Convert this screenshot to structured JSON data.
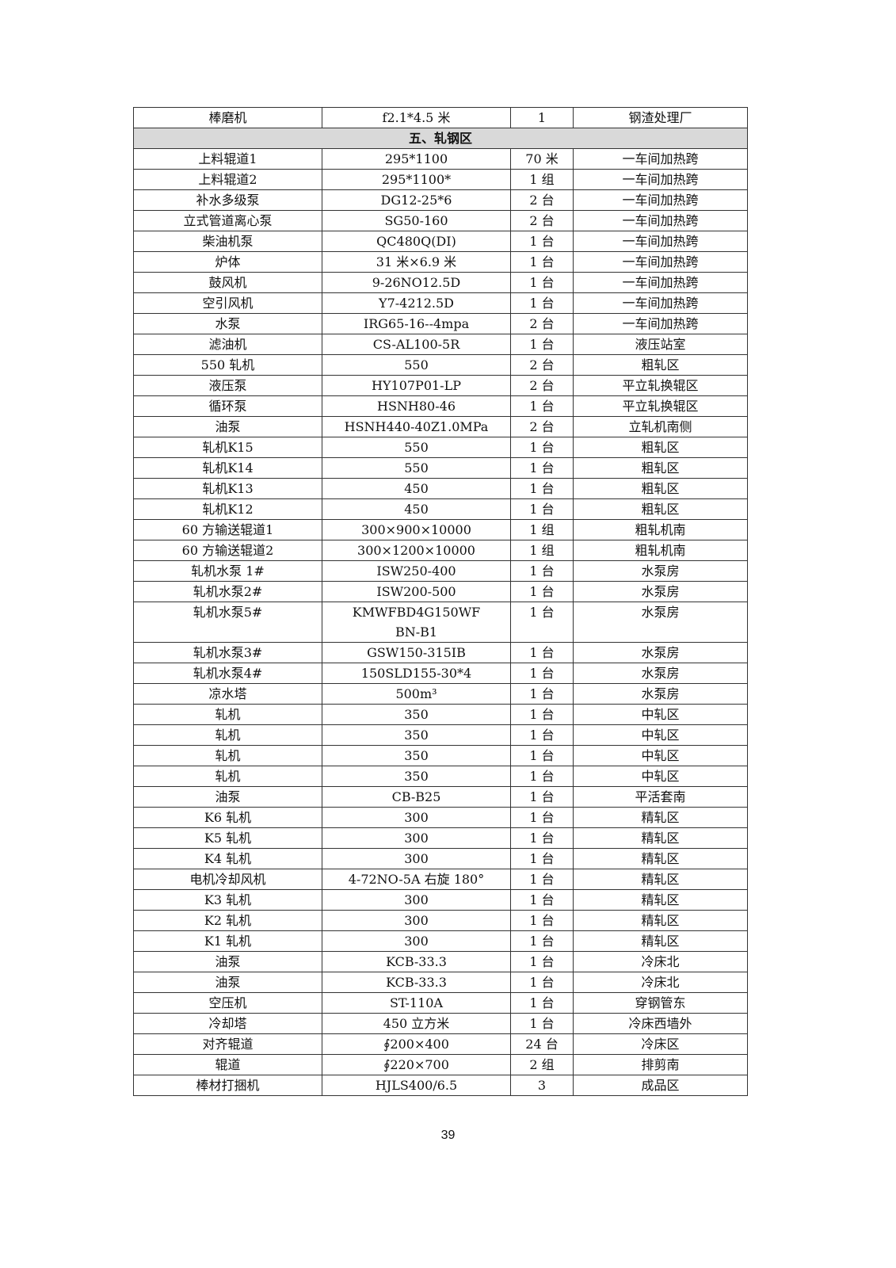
{
  "table": {
    "top_rows": [
      [
        "棒磨机",
        "f2.1*4.5 米",
        "1",
        "钢渣处理厂"
      ]
    ],
    "section_title": "五、轧钢区",
    "rows": [
      [
        "上料辊道1",
        "295*1100",
        "70 米",
        "一车间加热跨"
      ],
      [
        "上料辊道2",
        "295*1100*",
        "1 组",
        "一车间加热跨"
      ],
      [
        "补水多级泵",
        "DG12-25*6",
        "2 台",
        "一车间加热跨"
      ],
      [
        "立式管道离心泵",
        "SG50-160",
        "2 台",
        "一车间加热跨"
      ],
      [
        "柴油机泵",
        "QC480Q(DI)",
        "1 台",
        "一车间加热跨"
      ],
      [
        "炉体",
        "31 米×6.9 米",
        "1 台",
        "一车间加热跨"
      ],
      [
        "鼓风机",
        "9-26NO12.5D",
        "1 台",
        "一车间加热跨"
      ],
      [
        "空引风机",
        "Y7-4212.5D",
        "1 台",
        "一车间加热跨"
      ],
      [
        "水泵",
        "IRG65-16--4mpa",
        "2 台",
        "一车间加热跨"
      ],
      [
        "滤油机",
        "CS-AL100-5R",
        "1 台",
        "液压站室"
      ],
      [
        "550 轧机",
        "550",
        "2 台",
        "粗轧区"
      ],
      [
        "液压泵",
        "HY107P01-LP",
        "2 台",
        "平立轧换辊区"
      ],
      [
        "循环泵",
        "HSNH80-46",
        "1 台",
        "平立轧换辊区"
      ],
      [
        "油泵",
        "HSNH440-40Z1.0MPa",
        "2 台",
        "立轧机南侧"
      ],
      [
        "轧机K15",
        "550",
        "1 台",
        "粗轧区"
      ],
      [
        "轧机K14",
        "550",
        "1 台",
        "粗轧区"
      ],
      [
        "轧机K13",
        "450",
        "1 台",
        "粗轧区"
      ],
      [
        "轧机K12",
        "450",
        "1 台",
        "粗轧区"
      ],
      [
        "60 方输送辊道1",
        "300×900×10000",
        "1 组",
        "粗轧机南"
      ],
      [
        "60 方输送辊道2",
        "300×1200×10000",
        "1 组",
        "粗轧机南"
      ],
      [
        "轧机水泵 1#",
        "ISW250-400",
        "1 台",
        "水泵房"
      ],
      [
        "轧机水泵2#",
        "ISW200-500",
        "1 台",
        "水泵房"
      ],
      [
        "轧机水泵5#",
        "KMWFBD4G150WFBN-B1",
        "1 台",
        "水泵房"
      ],
      [
        "轧机水泵3#",
        "GSW150-315IB",
        "1 台",
        "水泵房"
      ],
      [
        "轧机水泵4#",
        "150SLD155-30*4",
        "1 台",
        "水泵房"
      ],
      [
        "凉水塔",
        "500m³",
        "1 台",
        "水泵房"
      ],
      [
        "轧机",
        "350",
        "1 台",
        "中轧区"
      ],
      [
        "轧机",
        "350",
        "1 台",
        "中轧区"
      ],
      [
        "轧机",
        "350",
        "1 台",
        "中轧区"
      ],
      [
        "轧机",
        "350",
        "1 台",
        "中轧区"
      ],
      [
        "油泵",
        "CB-B25",
        "1 台",
        "平活套南"
      ],
      [
        "K6 轧机",
        "300",
        "1 台",
        "精轧区"
      ],
      [
        "K5 轧机",
        "300",
        "1 台",
        "精轧区"
      ],
      [
        "K4 轧机",
        "300",
        "1 台",
        "精轧区"
      ],
      [
        "电机冷却风机",
        "4-72NO-5A 右旋 180°",
        "1 台",
        "精轧区"
      ],
      [
        "K3 轧机",
        "300",
        "1 台",
        "精轧区"
      ],
      [
        "K2 轧机",
        "300",
        "1 台",
        "精轧区"
      ],
      [
        "K1 轧机",
        "300",
        "1 台",
        "精轧区"
      ],
      [
        "油泵",
        "KCB-33.3",
        "1 台",
        "冷床北"
      ],
      [
        "油泵",
        "KCB-33.3",
        "1 台",
        "冷床北"
      ],
      [
        "空压机",
        "ST-110A",
        "1 台",
        "穿钢管东"
      ],
      [
        "冷却塔",
        "450 立方米",
        "1 台",
        "冷床西墙外"
      ],
      [
        "对齐辊道",
        "∮200×400",
        "24 台",
        "冷床区"
      ],
      [
        "辊道",
        "∮220×700",
        "2 组",
        "排剪南"
      ],
      [
        "棒材打捆机",
        "HJLS400/6.5",
        "3",
        "成品区"
      ]
    ]
  },
  "page_number": "39"
}
